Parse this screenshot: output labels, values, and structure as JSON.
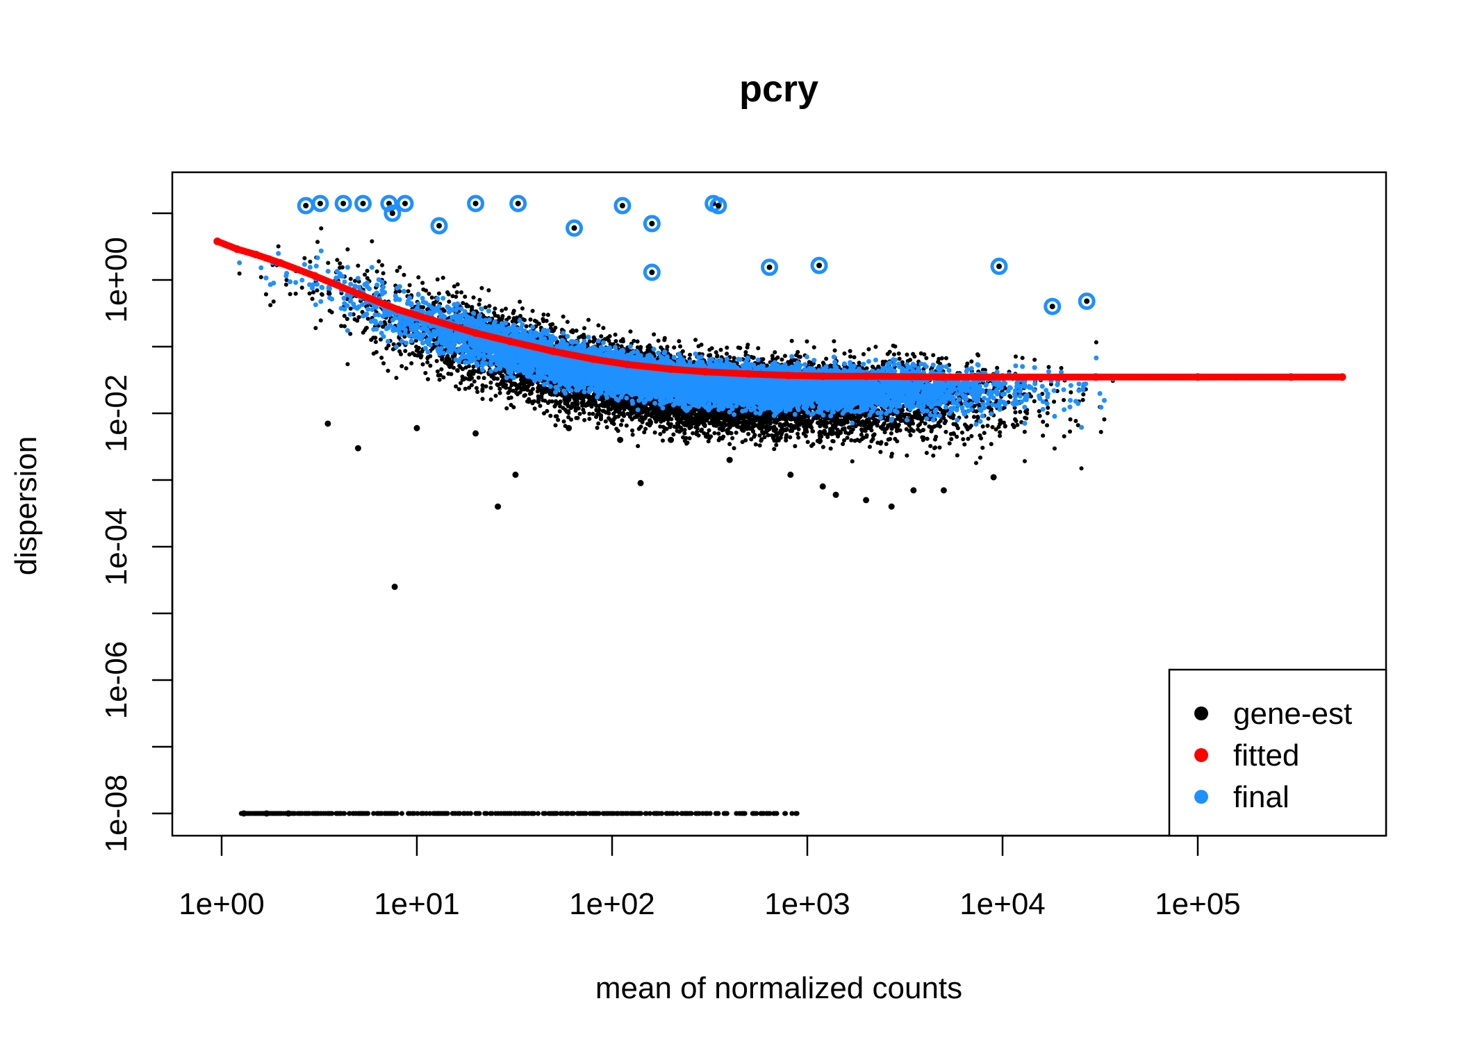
{
  "chart_data": {
    "type": "scatter",
    "title": "pcry",
    "xlabel": "mean of normalized counts",
    "ylabel": "dispersion",
    "x_scale": "log10",
    "y_scale": "log10",
    "xlim": [
      0.75,
      800000
    ],
    "ylim": [
      5e-09,
      30
    ],
    "x_ticks": [
      {
        "value": 1,
        "label": "1e+00"
      },
      {
        "value": 10,
        "label": "1e+01"
      },
      {
        "value": 100,
        "label": "1e+02"
      },
      {
        "value": 1000,
        "label": "1e+03"
      },
      {
        "value": 10000,
        "label": "1e+04"
      },
      {
        "value": 100000,
        "label": "1e+05"
      }
    ],
    "y_ticks": [
      {
        "value": 1e-08,
        "label": "1e-08"
      },
      {
        "value": 1e-07,
        "label": ""
      },
      {
        "value": 1e-06,
        "label": "1e-06"
      },
      {
        "value": 1e-05,
        "label": ""
      },
      {
        "value": 0.0001,
        "label": "1e-04"
      },
      {
        "value": 0.001,
        "label": ""
      },
      {
        "value": 0.01,
        "label": "1e-02"
      },
      {
        "value": 0.1,
        "label": ""
      },
      {
        "value": 1,
        "label": "1e+00"
      },
      {
        "value": 10,
        "label": ""
      }
    ],
    "legend": {
      "position": "bottom-right",
      "entries": [
        {
          "label": "gene-est",
          "color": "#000000"
        },
        {
          "label": "fitted",
          "color": "#ff0000"
        },
        {
          "label": "final",
          "color": "#1e90ff"
        }
      ]
    },
    "series": [
      {
        "name": "fitted",
        "color": "#ff0000",
        "x": [
          0.95,
          1.2,
          1.5,
          2,
          3,
          5,
          8,
          12,
          20,
          30,
          50,
          80,
          120,
          200,
          300,
          500,
          800,
          1200,
          2000,
          5000,
          10000,
          30000,
          100000,
          300000,
          550000
        ],
        "y": [
          3.8,
          2.9,
          2.4,
          1.8,
          1.15,
          0.62,
          0.36,
          0.25,
          0.16,
          0.12,
          0.085,
          0.065,
          0.054,
          0.046,
          0.042,
          0.039,
          0.037,
          0.036,
          0.036,
          0.035,
          0.035,
          0.035,
          0.035,
          0.035,
          0.035
        ]
      },
      {
        "name": "gene-est",
        "color": "#000000",
        "x": [
          1.3,
          1.7,
          2.2,
          3.5,
          5,
          7.7,
          10,
          20,
          26,
          32,
          60,
          110,
          140,
          200,
          400,
          820,
          1200,
          1400,
          2000,
          2700,
          3500,
          5000,
          9000
        ],
        "y": [
          1e-08,
          1e-08,
          1e-08,
          0.007,
          0.003,
          2.5e-05,
          0.006,
          0.005,
          0.0004,
          0.0012,
          0.006,
          0.004,
          0.0009,
          0.004,
          0.002,
          0.0012,
          0.0008,
          0.0006,
          0.0005,
          0.0004,
          0.0007,
          0.0007,
          0.0011
        ]
      },
      {
        "name": "final",
        "color": "#1e90ff",
        "x": [
          2.7,
          3.2,
          4.2,
          5.3,
          7.2,
          7.5,
          8.7,
          13,
          20,
          33,
          64,
          113,
          160,
          160,
          330,
          350,
          640,
          1150,
          9600,
          18000,
          27000
        ],
        "y": [
          13,
          14,
          14,
          14,
          14,
          10,
          14,
          6.5,
          14,
          14,
          6,
          13,
          7,
          1.3,
          14,
          13,
          1.55,
          1.65,
          1.6,
          0.4,
          0.48
        ]
      }
    ]
  }
}
